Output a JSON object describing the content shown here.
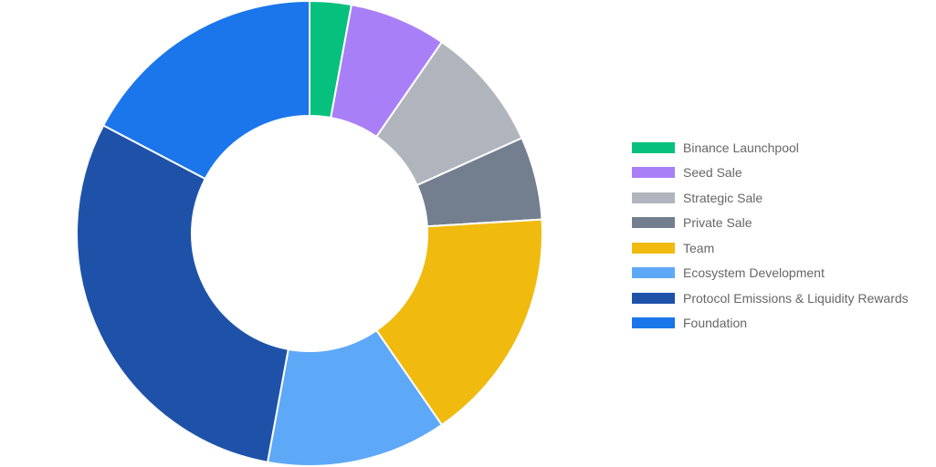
{
  "chart_data": {
    "type": "pie",
    "variant": "doughnut",
    "legend_position": "right",
    "categories": [
      "Binance Launchpool",
      "Seed Sale",
      "Strategic Sale",
      "Private Sale",
      "Team",
      "Ecosystem Development",
      "Protocol Emissions & Liquidity Rewards",
      "Foundation"
    ],
    "values": [
      3,
      7,
      9,
      6,
      17,
      13,
      31,
      18
    ],
    "colors": [
      "#06c17d",
      "#a97ff7",
      "#b0b5bd",
      "#737e8f",
      "#f0ba0f",
      "#5ea8f8",
      "#1e52a9",
      "#1a76ea"
    ]
  }
}
